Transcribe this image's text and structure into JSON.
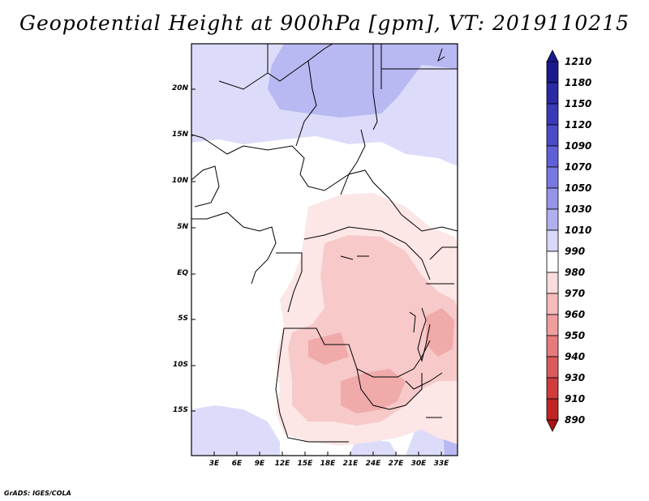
{
  "title": "Geopotential Height at 900hPa [gpm], VT: 2019110215",
  "footer": "GrADS: IGES/COLA",
  "map": {
    "lat_ticks": [
      "20N",
      "15N",
      "10N",
      "5N",
      "EQ",
      "5S",
      "10S",
      "15S"
    ],
    "lon_ticks": [
      "3E",
      "6E",
      "9E",
      "12E",
      "15E",
      "18E",
      "21E",
      "24E",
      "27E",
      "30E",
      "33E"
    ]
  },
  "colorbar": {
    "levels": [
      "1210",
      "1180",
      "1150",
      "1120",
      "1090",
      "1070",
      "1050",
      "1030",
      "1010",
      "990",
      "980",
      "970",
      "960",
      "950",
      "940",
      "930",
      "910",
      "890"
    ],
    "colors": [
      "#1a1a8c",
      "#2a2aa5",
      "#3a3ab8",
      "#4b4bc8",
      "#6060d6",
      "#7878e0",
      "#9494e8",
      "#b0b0f0",
      "#d8d8fa",
      "#ffffff",
      "#fbdcdc",
      "#f6bcbc",
      "#ef9d9d",
      "#e57b7b",
      "#db5a5a",
      "#cf3c3c",
      "#c22424",
      "#a81414"
    ]
  },
  "colors": {
    "blue_light": "#dcdcfa",
    "blue_mid": "#b8b8f2",
    "pink_light": "#fce6e6",
    "pink_mid": "#f7c9c9",
    "pink_dark": "#f0aaaa"
  }
}
